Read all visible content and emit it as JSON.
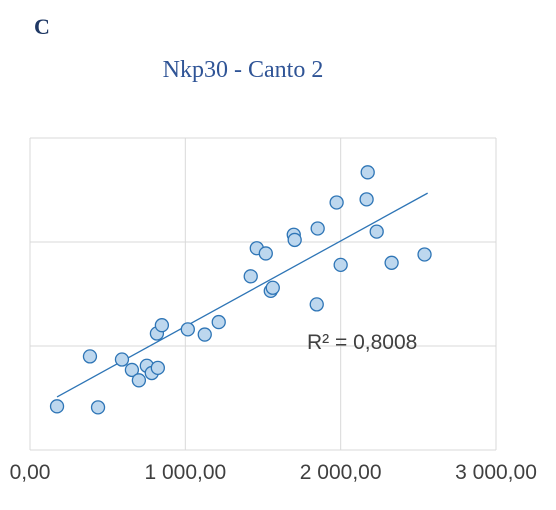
{
  "panel_label": "C",
  "chart_data": {
    "type": "scatter",
    "title": "Nkp30 - Canto 2",
    "annotation": "R² = 0,8008",
    "color": "#2e75b6",
    "fill": "#bdd7ee",
    "grid": true,
    "x": [
      174,
      386,
      438,
      592,
      656,
      701,
      752,
      784,
      823,
      817,
      849,
      1016,
      1125,
      1215,
      1421,
      1460,
      1518,
      1550,
      1563,
      1698,
      1704,
      1852,
      1846,
      1974,
      2000,
      2174,
      2167,
      2232,
      2328,
      2540
    ],
    "values": [
      0.42,
      0.9,
      0.41,
      0.87,
      0.77,
      0.67,
      0.81,
      0.74,
      0.79,
      1.12,
      1.2,
      1.16,
      1.11,
      1.23,
      1.67,
      1.94,
      1.89,
      1.53,
      1.56,
      2.07,
      2.02,
      2.13,
      1.4,
      2.38,
      1.78,
      2.67,
      2.41,
      2.1,
      1.8,
      1.88
    ],
    "trendline": {
      "x": [
        174,
        2560
      ],
      "y": [
        0.51,
        2.47
      ]
    },
    "xlim": [
      0,
      3000
    ],
    "xticks": [
      {
        "value": 0,
        "label": "0,00"
      },
      {
        "value": 1000,
        "label": "1 000,00"
      },
      {
        "value": 2000,
        "label": "2 000,00"
      },
      {
        "value": 3000,
        "label": "3 000,00"
      }
    ],
    "ylim": [
      0,
      3
    ],
    "yticks": [
      0,
      1,
      2,
      3
    ]
  }
}
